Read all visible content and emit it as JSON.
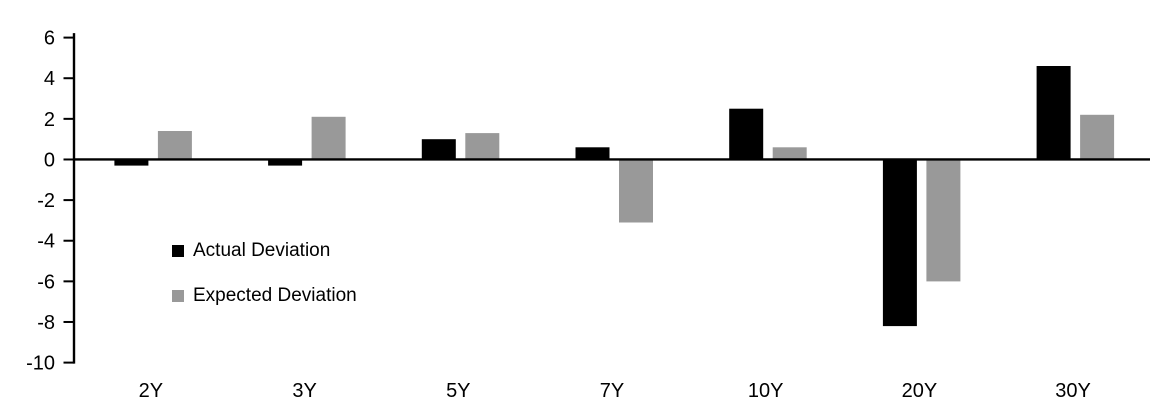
{
  "chart_data": {
    "type": "bar",
    "title": "",
    "xlabel": "",
    "ylabel": "",
    "categories": [
      "2Y",
      "3Y",
      "5Y",
      "7Y",
      "10Y",
      "20Y",
      "30Y"
    ],
    "series": [
      {
        "name": "Actual Deviation",
        "color": "#000000",
        "values": [
          -0.3,
          -0.3,
          1.0,
          0.6,
          2.5,
          -8.2,
          4.6
        ]
      },
      {
        "name": "Expected Deviation",
        "color": "#999999",
        "values": [
          1.4,
          2.1,
          1.3,
          -3.1,
          0.6,
          -6.0,
          2.2
        ]
      }
    ],
    "ylim": [
      -10,
      6
    ],
    "yticks": [
      6,
      4,
      2,
      0,
      -2,
      -4,
      -6,
      -8,
      -10
    ],
    "grid": false,
    "legend_position": "inside-left",
    "axis_color": "#000000",
    "tick_label_color": "#000000"
  }
}
